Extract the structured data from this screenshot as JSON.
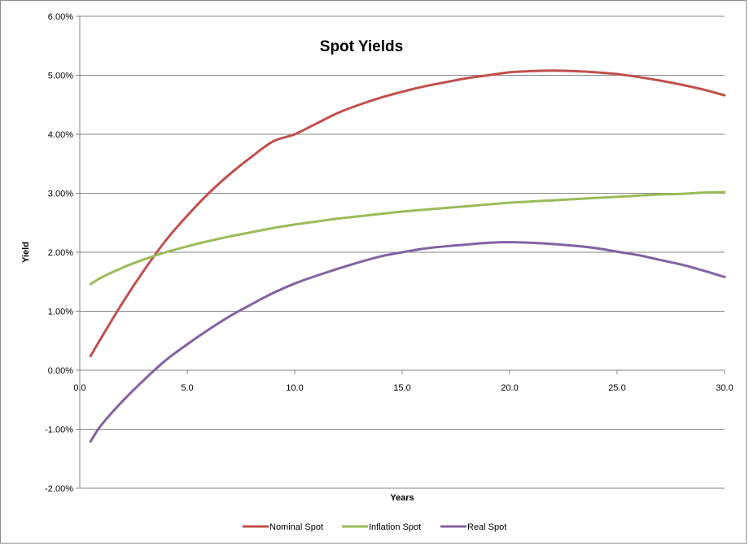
{
  "chart_data": {
    "type": "line",
    "title": "Spot Yields",
    "xlabel": "Years",
    "ylabel": "Yield",
    "xlim": [
      0,
      30
    ],
    "ylim": [
      -2.0,
      6.0
    ],
    "x_ticks": [
      "0.0",
      "5.0",
      "10.0",
      "15.0",
      "20.0",
      "25.0",
      "30.0"
    ],
    "x_tick_values": [
      0,
      5,
      10,
      15,
      20,
      25,
      30
    ],
    "y_ticks": [
      "-2.00%",
      "-1.00%",
      "0.00%",
      "1.00%",
      "2.00%",
      "3.00%",
      "4.00%",
      "5.00%",
      "6.00%"
    ],
    "y_tick_values": [
      -2,
      -1,
      0,
      1,
      2,
      3,
      4,
      5,
      6
    ],
    "grid": "horizontal",
    "legend_position": "bottom",
    "x": [
      0.5,
      1,
      2,
      3,
      4,
      5,
      6,
      7,
      8,
      9,
      10,
      11,
      12,
      13,
      14,
      15,
      16,
      17,
      18,
      19,
      20,
      21,
      22,
      23,
      24,
      25,
      26,
      27,
      28,
      29,
      30
    ],
    "series": [
      {
        "name": "Nominal Spot",
        "color": "#c0504d",
        "values": [
          0.24,
          0.55,
          1.15,
          1.7,
          2.2,
          2.62,
          3.0,
          3.33,
          3.62,
          3.88,
          4.0,
          4.18,
          4.36,
          4.5,
          4.62,
          4.72,
          4.81,
          4.88,
          4.95,
          5.0,
          5.05,
          5.07,
          5.08,
          5.07,
          5.05,
          5.02,
          4.97,
          4.91,
          4.84,
          4.76,
          4.66
        ]
      },
      {
        "name": "Inflation Spot",
        "color": "#9bbb59",
        "values": [
          1.46,
          1.57,
          1.74,
          1.88,
          2.0,
          2.1,
          2.19,
          2.27,
          2.34,
          2.41,
          2.47,
          2.52,
          2.57,
          2.61,
          2.65,
          2.69,
          2.72,
          2.75,
          2.78,
          2.81,
          2.84,
          2.86,
          2.88,
          2.9,
          2.92,
          2.94,
          2.96,
          2.98,
          2.99,
          3.01,
          3.02
        ]
      },
      {
        "name": "Real Spot",
        "color": "#8064a2",
        "values": [
          -1.21,
          -0.93,
          -0.52,
          -0.16,
          0.17,
          0.44,
          0.69,
          0.92,
          1.12,
          1.31,
          1.47,
          1.6,
          1.72,
          1.83,
          1.93,
          2.0,
          2.06,
          2.1,
          2.13,
          2.16,
          2.17,
          2.16,
          2.14,
          2.11,
          2.07,
          2.01,
          1.95,
          1.87,
          1.79,
          1.69,
          1.58
        ]
      }
    ]
  }
}
